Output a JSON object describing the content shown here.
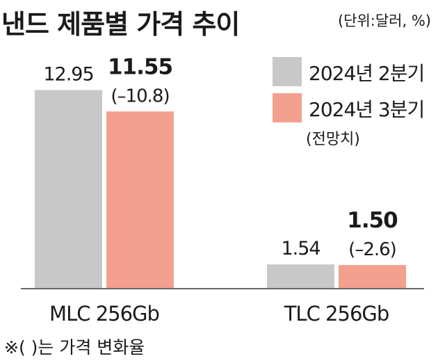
{
  "title": "낸드 제품별 가격 추이",
  "unit_note": "(단위:달러, %)",
  "legend": {
    "items": [
      {
        "label": "2024년 2분기",
        "color": "#c8c8c8"
      },
      {
        "label": "2024년 3분기",
        "color": "#f4a08f"
      }
    ],
    "note": "(전망치)"
  },
  "footnote": "※(   )는 가격 변화율",
  "chart_data": {
    "type": "bar",
    "categories": [
      "MLC 256Gb",
      "TLC 256Gb"
    ],
    "series": [
      {
        "name": "2024년 2분기",
        "values": [
          12.95,
          1.54
        ],
        "labels": [
          "12.95",
          "1.54"
        ]
      },
      {
        "name": "2024년 3분기",
        "values": [
          11.55,
          1.5
        ],
        "labels": [
          "11.55",
          "1.50"
        ],
        "change_labels": [
          "(–10.8)",
          "(–2.6)"
        ]
      }
    ],
    "colors": [
      "#c8c8c8",
      "#f4a08f"
    ],
    "ylim": [
      0,
      13.2
    ],
    "grid": false,
    "legend_position": "top-right"
  }
}
